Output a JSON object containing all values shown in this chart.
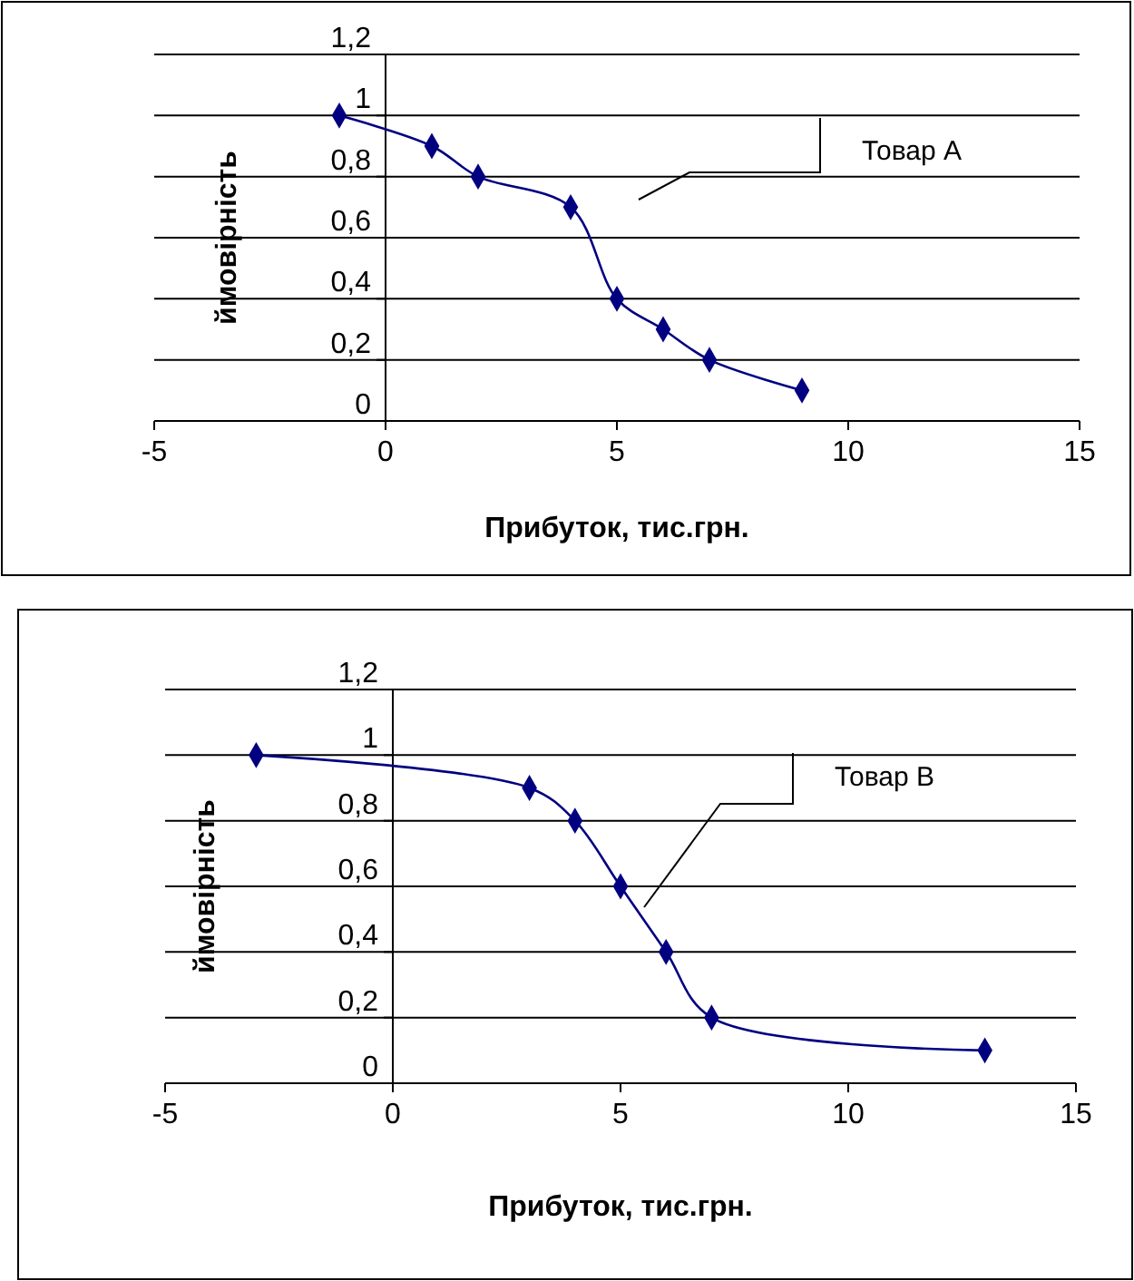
{
  "chart_data": [
    {
      "type": "line",
      "xlabel": "Прибуток, тис.грн.",
      "ylabel": "ймовірність",
      "annotations": [
        "Товар А"
      ],
      "x": [
        -1,
        1,
        2,
        4,
        5,
        6,
        7,
        9
      ],
      "series": [
        {
          "color": "#000080",
          "values": [
            1,
            0.9,
            0.8,
            0.7,
            0.4,
            0.3,
            0.2,
            0.1
          ]
        }
      ],
      "xlim": [
        -5,
        15
      ],
      "xticks": [
        -5,
        0,
        5,
        10,
        15
      ],
      "ylim": [
        0,
        1.2
      ],
      "yticks": [
        {
          "value": 0,
          "label": "0"
        },
        {
          "value": 0.2,
          "label": "0,2"
        },
        {
          "value": 0.4,
          "label": "0,4"
        },
        {
          "value": 0.6,
          "label": "0,6"
        },
        {
          "value": 0.8,
          "label": "0,8"
        },
        {
          "value": 1,
          "label": "1"
        },
        {
          "value": 1.2,
          "label": "1,2"
        }
      ],
      "grid": "y",
      "marker": "diamond",
      "line_style": "solid"
    },
    {
      "type": "line",
      "xlabel": "Прибуток, тис.грн.",
      "ylabel": "ймовірність",
      "annotations": [
        "Товар В"
      ],
      "x": [
        -3,
        3,
        4,
        5,
        6,
        7,
        13
      ],
      "series": [
        {
          "color": "#000080",
          "values": [
            1,
            0.9,
            0.8,
            0.6,
            0.4,
            0.2,
            0.1
          ]
        }
      ],
      "xlim": [
        -5,
        15
      ],
      "xticks": [
        -5,
        0,
        5,
        10,
        15
      ],
      "ylim": [
        0,
        1.2
      ],
      "yticks": [
        {
          "value": 0,
          "label": "0"
        },
        {
          "value": 0.2,
          "label": "0,2"
        },
        {
          "value": 0.4,
          "label": "0,4"
        },
        {
          "value": 0.6,
          "label": "0,6"
        },
        {
          "value": 0.8,
          "label": "0,8"
        },
        {
          "value": 1,
          "label": "1"
        },
        {
          "value": 1.2,
          "label": "1,2"
        }
      ],
      "grid": "y",
      "marker": "diamond",
      "line_style": "solid"
    }
  ]
}
